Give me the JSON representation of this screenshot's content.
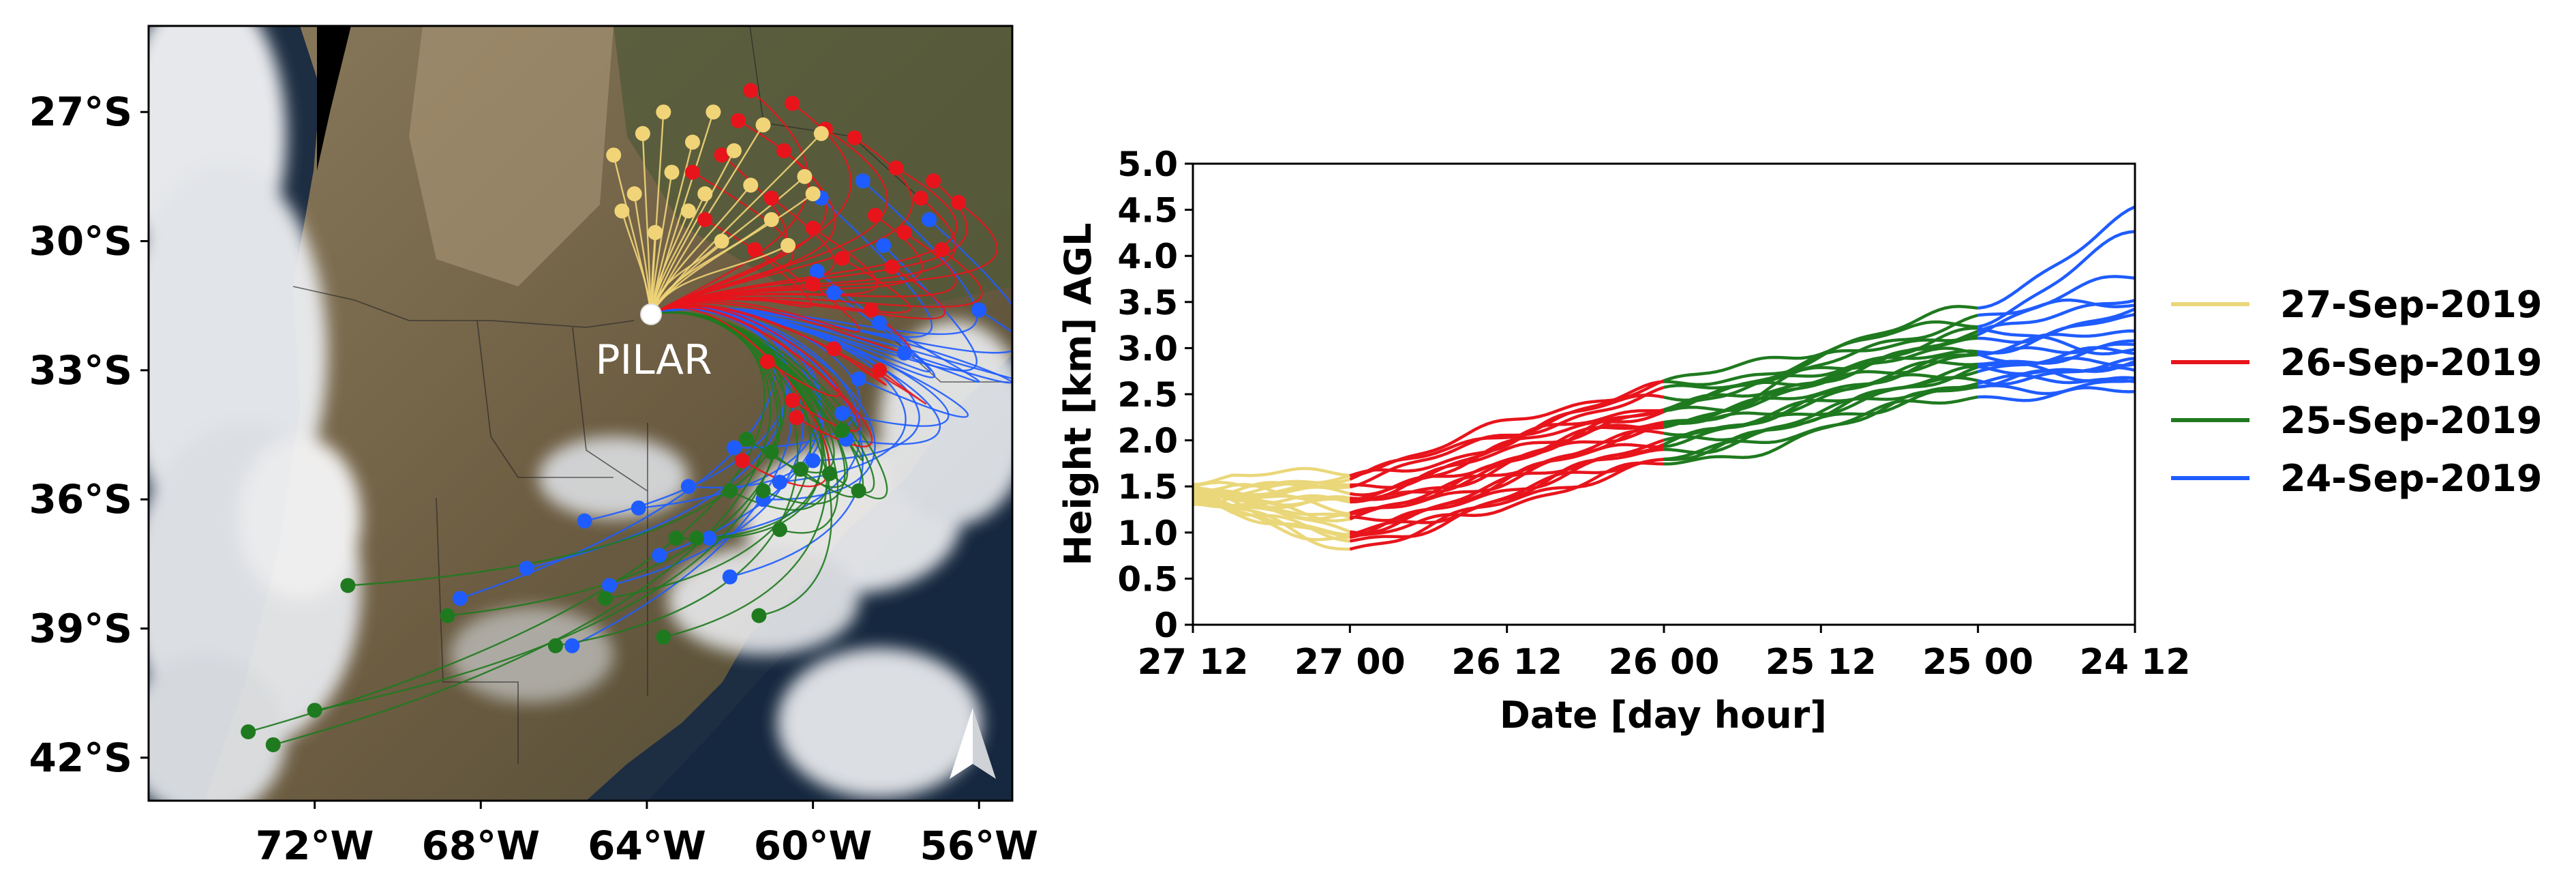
{
  "chart_data": [
    {
      "type": "map",
      "marker_label": "PILAR",
      "north_arrow_icon": "north-arrow-icon",
      "lat_ticks": [
        "27°S",
        "30°S",
        "33°S",
        "36°S",
        "39°S",
        "42°S"
      ],
      "lon_ticks": [
        "72°W",
        "68°W",
        "64°W",
        "60°W",
        "56°W"
      ],
      "lat_values": [
        -27,
        -30,
        -33,
        -36,
        -39,
        -42
      ],
      "lon_values": [
        -72,
        -68,
        -64,
        -60,
        -56
      ],
      "extent": {
        "lon": [
          -76,
          -55.2
        ],
        "lat": [
          -25,
          -43
        ]
      },
      "origin": {
        "lon": -63.9,
        "lat": -31.7
      },
      "trajectory_groups": [
        {
          "name": "24-Sep-2019",
          "color": "#1f5cff",
          "endpoints": [
            [
              -68.5,
              -38.3
            ],
            [
              -65.8,
              -39.4
            ],
            [
              -64.9,
              -38.0
            ],
            [
              -63.7,
              -37.3
            ],
            [
              -62.5,
              -36.9
            ],
            [
              -61.2,
              -36.0
            ],
            [
              -60.0,
              -35.1
            ],
            [
              -59.3,
              -34.0
            ],
            [
              -58.9,
              -33.2
            ],
            [
              -57.8,
              -32.6
            ],
            [
              -59.5,
              -31.2
            ],
            [
              -58.3,
              -30.1
            ],
            [
              -59.8,
              -29.0
            ],
            [
              -57.2,
              -29.5
            ],
            [
              -56.0,
              -31.6
            ],
            [
              -65.5,
              -36.5
            ],
            [
              -66.9,
              -37.6
            ],
            [
              -62.0,
              -37.8
            ],
            [
              -60.8,
              -35.6
            ],
            [
              -64.2,
              -36.2
            ],
            [
              -63.0,
              -35.7
            ],
            [
              -61.9,
              -34.8
            ],
            [
              -58.4,
              -31.9
            ],
            [
              -59.9,
              -30.7
            ],
            [
              -58.8,
              -28.6
            ],
            [
              -59.2,
              -34.6
            ]
          ]
        },
        {
          "name": "25-Sep-2019",
          "color": "#1f7a1f",
          "endpoints": [
            [
              -73.6,
              -41.4
            ],
            [
              -73.0,
              -41.7
            ],
            [
              -72.0,
              -40.9
            ],
            [
              -71.2,
              -38.0
            ],
            [
              -68.8,
              -38.7
            ],
            [
              -66.2,
              -39.4
            ],
            [
              -65.0,
              -38.3
            ],
            [
              -63.6,
              -39.2
            ],
            [
              -61.3,
              -38.7
            ],
            [
              -62.8,
              -36.9
            ],
            [
              -61.2,
              -35.8
            ],
            [
              -60.3,
              -35.3
            ],
            [
              -59.3,
              -34.4
            ],
            [
              -61.6,
              -34.6
            ],
            [
              -61.0,
              -34.9
            ],
            [
              -58.9,
              -35.8
            ],
            [
              -60.8,
              -36.7
            ],
            [
              -62.0,
              -35.8
            ],
            [
              -63.3,
              -36.9
            ],
            [
              -59.6,
              -35.4
            ]
          ]
        },
        {
          "name": "26-Sep-2019",
          "color": "#e8141c",
          "endpoints": [
            [
              -61.5,
              -26.5
            ],
            [
              -60.5,
              -26.8
            ],
            [
              -59.0,
              -27.6
            ],
            [
              -58.0,
              -28.3
            ],
            [
              -57.1,
              -28.6
            ],
            [
              -56.5,
              -29.1
            ],
            [
              -57.8,
              -29.8
            ],
            [
              -59.3,
              -30.4
            ],
            [
              -58.6,
              -31.6
            ],
            [
              -59.5,
              -32.5
            ],
            [
              -60.5,
              -33.7
            ],
            [
              -61.7,
              -35.1
            ],
            [
              -62.2,
              -28.0
            ],
            [
              -61.0,
              -29.0
            ],
            [
              -60.0,
              -29.7
            ],
            [
              -62.6,
              -29.5
            ],
            [
              -61.4,
              -30.2
            ],
            [
              -58.4,
              -33.0
            ],
            [
              -61.1,
              -32.8
            ],
            [
              -60.4,
              -34.1
            ],
            [
              -57.4,
              -29.0
            ],
            [
              -58.5,
              -29.4
            ],
            [
              -59.7,
              -27.4
            ],
            [
              -61.8,
              -27.2
            ],
            [
              -60.0,
              -31.0
            ],
            [
              -56.9,
              -30.2
            ],
            [
              -58.1,
              -30.6
            ],
            [
              -62.9,
              -28.4
            ],
            [
              -60.7,
              -27.9
            ]
          ]
        },
        {
          "name": "27-Sep-2019",
          "color": "#f0d477",
          "endpoints": [
            [
              -64.8,
              -28.0
            ],
            [
              -64.3,
              -28.9
            ],
            [
              -63.8,
              -29.8
            ],
            [
              -63.4,
              -28.4
            ],
            [
              -62.9,
              -27.7
            ],
            [
              -62.4,
              -27.0
            ],
            [
              -61.9,
              -27.9
            ],
            [
              -61.5,
              -28.7
            ],
            [
              -61.0,
              -29.5
            ],
            [
              -60.6,
              -30.1
            ],
            [
              -60.2,
              -28.5
            ],
            [
              -59.8,
              -27.5
            ],
            [
              -64.1,
              -27.5
            ],
            [
              -63.0,
              -29.3
            ],
            [
              -62.2,
              -30.0
            ],
            [
              -61.2,
              -27.3
            ],
            [
              -60.0,
              -28.9
            ],
            [
              -63.6,
              -27.0
            ],
            [
              -64.6,
              -29.3
            ],
            [
              -62.6,
              -28.9
            ]
          ]
        }
      ]
    },
    {
      "type": "line",
      "xlabel": "Date [day hour]",
      "ylabel": "Height [km] AGL",
      "x_tick_labels": [
        "27 12",
        "27 00",
        "26 12",
        "26 00",
        "25 12",
        "25 00",
        "24 12"
      ],
      "x_tick_hours": [
        0,
        12,
        24,
        36,
        48,
        60,
        72
      ],
      "xlim": [
        0,
        72
      ],
      "y_tick_labels": [
        "0",
        "0.5",
        "1.0",
        "1.5",
        "2.0",
        "2.5",
        "3.0",
        "3.5",
        "4.0",
        "4.5",
        "5.0"
      ],
      "ylim": [
        0,
        5
      ],
      "x_unit": "hours back from 27 12",
      "segments": [
        {
          "name": "27-Sep-2019",
          "color": "#ead77a",
          "x_range": [
            0,
            12
          ]
        },
        {
          "name": "26-Sep-2019",
          "color": "#e8141c",
          "x_range": [
            12,
            36
          ]
        },
        {
          "name": "25-Sep-2019",
          "color": "#1f7a1f",
          "x_range": [
            36,
            60
          ]
        },
        {
          "name": "24-Sep-2019",
          "color": "#1f5cff",
          "x_range": [
            60,
            72
          ]
        }
      ],
      "start_heights": [
        1.52,
        1.5,
        1.48,
        1.46,
        1.45,
        1.44,
        1.43,
        1.42,
        1.41,
        1.4,
        1.39,
        1.38,
        1.37,
        1.36,
        1.35,
        1.34,
        1.33,
        1.32,
        1.31,
        1.3
      ],
      "height_at_hour_12": [
        1.7,
        1.62,
        1.55,
        1.48,
        1.4,
        1.35,
        1.3,
        1.25,
        1.2,
        1.15,
        1.1,
        1.05,
        1.0,
        0.95,
        0.9,
        0.86,
        0.92,
        1.3,
        1.45,
        1.58
      ],
      "height_at_hour_36": [
        2.62,
        2.55,
        2.48,
        2.4,
        2.33,
        2.28,
        2.22,
        2.18,
        2.12,
        2.07,
        2.02,
        1.98,
        1.93,
        1.88,
        1.83,
        1.78,
        1.72,
        2.2,
        2.35,
        2.5
      ],
      "height_at_hour_60": [
        3.4,
        3.3,
        3.2,
        3.12,
        3.05,
        3.0,
        2.95,
        2.9,
        2.85,
        2.8,
        2.75,
        2.72,
        2.68,
        2.65,
        2.6,
        2.55,
        2.5,
        3.35,
        3.15,
        2.95
      ],
      "height_at_hour_72": [
        4.5,
        4.2,
        3.8,
        3.6,
        3.4,
        3.3,
        3.2,
        3.1,
        3.0,
        2.95,
        2.9,
        2.85,
        2.8,
        2.75,
        2.7,
        2.65,
        2.5,
        3.5,
        3.0,
        2.6
      ],
      "legend": [
        {
          "label": "27-Sep-2019",
          "color": "#ead77a"
        },
        {
          "label": "26-Sep-2019",
          "color": "#e8141c"
        },
        {
          "label": "25-Sep-2019",
          "color": "#1f7a1f"
        },
        {
          "label": "24-Sep-2019",
          "color": "#1f5cff"
        }
      ],
      "legend_position": "right"
    }
  ]
}
